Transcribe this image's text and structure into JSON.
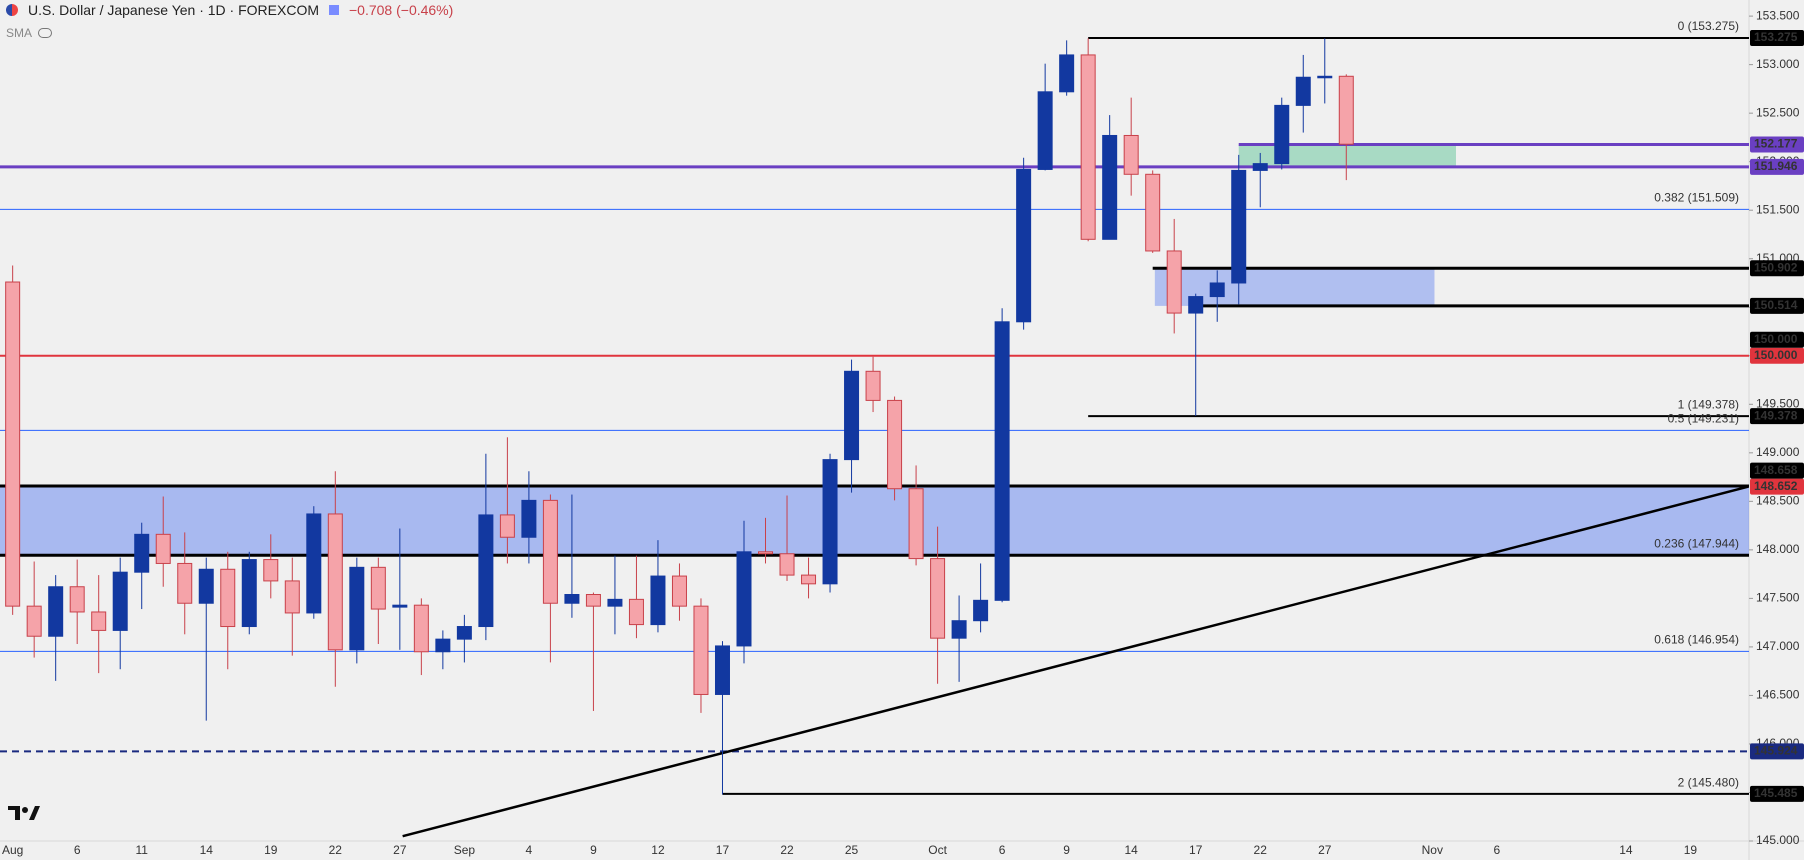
{
  "chart_data": {
    "type": "candlestick",
    "title": "U.S. Dollar / Japanese Yen · 1D · FOREXCOM",
    "change": "−0.708 (−0.46%)",
    "indicator": "SMA",
    "categories": [
      "Aug",
      null,
      null,
      "6",
      null,
      null,
      "11",
      null,
      null,
      "14",
      null,
      null,
      "19",
      null,
      null,
      "22",
      null,
      null,
      "27",
      null,
      null,
      "Sep",
      null,
      null,
      "4",
      null,
      null,
      "9",
      null,
      null,
      "12",
      null,
      null,
      "17",
      null,
      null,
      "22",
      null,
      null,
      "25",
      null,
      null,
      null,
      "Oct",
      null,
      null,
      "6",
      null,
      null,
      "9",
      null,
      null,
      "14",
      null,
      null,
      "17",
      null,
      null,
      "22",
      null,
      null,
      "27",
      null,
      null,
      null,
      null,
      "Nov",
      null,
      null,
      "6",
      null,
      null,
      null,
      null,
      null,
      "14",
      null,
      null,
      "19"
    ],
    "open": [
      150.76,
      147.42,
      147.11,
      147.62,
      147.36,
      147.17,
      147.77,
      148.16,
      147.86,
      147.45,
      147.8,
      147.21,
      147.9,
      147.68,
      147.35,
      148.37,
      146.97,
      147.82,
      147.41,
      147.43,
      146.95,
      147.08,
      147.21,
      148.36,
      148.13,
      148.51,
      147.45,
      147.54,
      147.42,
      147.49,
      147.23,
      147.73,
      147.42,
      146.51,
      147.01,
      147.98,
      147.96,
      147.74,
      147.65,
      148.93,
      149.84,
      149.54,
      148.63,
      147.91,
      147.09,
      147.27,
      147.48,
      150.35,
      151.92,
      152.72,
      153.1,
      151.2,
      152.27,
      151.87,
      151.08,
      150.44,
      150.61,
      150.75,
      151.91,
      151.98,
      152.58,
      152.87,
      152.88,
      null,
      null,
      null,
      null,
      null,
      null,
      null,
      null,
      null,
      null,
      null,
      null,
      null,
      null,
      null,
      null
    ],
    "high": [
      150.93,
      147.88,
      147.74,
      147.9,
      147.74,
      147.92,
      148.28,
      148.55,
      148.18,
      147.92,
      147.98,
      147.98,
      148.16,
      147.92,
      148.45,
      148.81,
      147.92,
      147.92,
      148.22,
      147.5,
      147.17,
      147.33,
      148.99,
      149.16,
      148.81,
      148.57,
      148.57,
      147.56,
      147.94,
      147.94,
      148.1,
      147.86,
      147.5,
      147.06,
      148.3,
      148.33,
      148.56,
      147.92,
      148.99,
      149.96,
      149.99,
      149.58,
      148.87,
      148.24,
      147.53,
      147.86,
      150.49,
      152.04,
      153.01,
      153.25,
      153.27,
      152.48,
      152.66,
      151.91,
      151.41,
      150.64,
      150.88,
      152.07,
      152.09,
      152.66,
      153.1,
      153.27,
      152.9,
      null,
      null,
      null,
      null,
      null,
      null,
      null,
      null,
      null,
      null,
      null,
      null,
      null,
      null,
      null,
      null
    ],
    "low": [
      147.33,
      146.89,
      146.65,
      147.03,
      146.73,
      146.77,
      147.39,
      147.62,
      147.13,
      146.24,
      146.77,
      147.13,
      147.5,
      146.91,
      147.29,
      146.59,
      146.83,
      147.03,
      146.97,
      146.71,
      146.77,
      146.84,
      147.07,
      147.86,
      147.86,
      146.84,
      147.3,
      146.34,
      147.13,
      147.09,
      147.15,
      147.27,
      146.32,
      145.48,
      146.83,
      147.86,
      147.68,
      147.5,
      147.56,
      148.59,
      149.42,
      148.51,
      147.84,
      146.62,
      146.64,
      147.15,
      147.46,
      150.27,
      151.91,
      152.68,
      151.18,
      151.2,
      151.65,
      151.06,
      150.23,
      149.38,
      150.35,
      150.53,
      151.53,
      151.92,
      152.3,
      152.6,
      151.81,
      null,
      null,
      null,
      null,
      null,
      null,
      null,
      null,
      null,
      null,
      null,
      null,
      null,
      null,
      null,
      null
    ],
    "close": [
      147.42,
      147.11,
      147.62,
      147.36,
      147.17,
      147.77,
      148.16,
      147.86,
      147.45,
      147.8,
      147.21,
      147.9,
      147.68,
      147.35,
      148.37,
      146.97,
      147.82,
      147.39,
      147.43,
      146.95,
      147.08,
      147.21,
      148.36,
      148.13,
      148.51,
      147.45,
      147.54,
      147.42,
      147.49,
      147.23,
      147.73,
      147.42,
      146.51,
      147.01,
      147.98,
      147.96,
      147.74,
      147.65,
      148.93,
      149.84,
      149.54,
      148.63,
      147.91,
      147.09,
      147.27,
      147.48,
      150.35,
      151.92,
      152.72,
      153.1,
      151.2,
      152.27,
      151.87,
      151.08,
      150.44,
      150.61,
      150.75,
      151.91,
      151.98,
      152.58,
      152.87,
      152.88,
      152.18,
      null,
      null,
      null,
      null,
      null,
      null,
      null,
      null,
      null,
      null,
      null,
      null,
      null,
      null,
      null,
      null
    ],
    "up_color": "#1238a0",
    "down_color": "#f5a3a9",
    "down_border": "#c8414a",
    "ylim": [
      145.0,
      153.666
    ],
    "yticks": [
      {
        "value": 145.0,
        "label": "145.000"
      },
      {
        "value": 145.5,
        "label": "145.500"
      },
      {
        "value": 146.0,
        "label": "146.000"
      },
      {
        "value": 146.5,
        "label": "146.500"
      },
      {
        "value": 147.0,
        "label": "147.000"
      },
      {
        "value": 147.5,
        "label": "147.500"
      },
      {
        "value": 148.0,
        "label": "148.000"
      },
      {
        "value": 148.5,
        "label": "148.500"
      },
      {
        "value": 149.0,
        "label": "149.000"
      },
      {
        "value": 149.5,
        "label": "149.500"
      },
      {
        "value": 150.0,
        "label": "150.000"
      },
      {
        "value": 150.5,
        "label": "150.500"
      },
      {
        "value": 151.0,
        "label": "151.000"
      },
      {
        "value": 151.5,
        "label": "151.500"
      },
      {
        "value": 152.0,
        "label": "152.000"
      },
      {
        "value": 152.5,
        "label": "152.500"
      },
      {
        "value": 153.0,
        "label": "153.000"
      },
      {
        "value": 153.5,
        "label": "153.500"
      }
    ],
    "zones": [
      {
        "low": 147.944,
        "high": 148.658,
        "color": "rgba(70,110,240,0.42)"
      },
      {
        "low": 150.514,
        "high": 150.902,
        "from": 53.1,
        "to": 66.1,
        "color": "rgba(70,110,240,0.38)"
      },
      {
        "low": 151.946,
        "high": 152.177,
        "from": 57,
        "to": 67.1,
        "color": "rgba(110,200,160,0.55)"
      }
    ],
    "levels": [
      {
        "value": 153.275,
        "label": "153.275",
        "color": "#000000",
        "width": 2,
        "from": 50
      },
      {
        "value": 152.177,
        "label": "152.177",
        "color": "#6a3fc2",
        "width": 3,
        "from": 57
      },
      {
        "value": 151.946,
        "label": "151.946",
        "color": "#6a3fc2",
        "width": 3
      },
      {
        "value": 151.509,
        "color": "#2962ff",
        "width": 1
      },
      {
        "value": 150.902,
        "label": "150.902",
        "color": "#000000",
        "width": 3,
        "from": 53
      },
      {
        "value": 150.514,
        "label": "150.514",
        "color": "#000000",
        "width": 3,
        "from": 55
      },
      {
        "value": 150.0,
        "label": "150.000",
        "color": "#e0343d",
        "width": 2
      },
      {
        "value": 149.378,
        "label": "149.378",
        "color": "#000000",
        "width": 2,
        "from": 50
      },
      {
        "value": 149.231,
        "color": "#2962ff",
        "width": 1
      },
      {
        "value": 148.658,
        "label": "148.658",
        "color": "#000000",
        "width": 3
      },
      {
        "value": 147.944,
        "color": "#000000",
        "width": 3
      },
      {
        "value": 146.954,
        "color": "#2962ff",
        "width": 1
      },
      {
        "value": 145.924,
        "label": "145.924",
        "color": "#1a2a80",
        "width": 2,
        "dash": true
      },
      {
        "value": 145.485,
        "label": "145.485",
        "color": "#000000",
        "width": 2,
        "from": 33
      }
    ],
    "markers": [
      {
        "value": 150.0,
        "label": "150.000",
        "color": "#000000"
      },
      {
        "value": 148.652,
        "label": "148.652",
        "color": "#e0343d"
      }
    ],
    "fib_labels": [
      {
        "value": 153.275,
        "label": "0 (153.275)",
        "color": "#333333"
      },
      {
        "value": 151.509,
        "label": "0.382 (151.509)",
        "color": "#2962ff"
      },
      {
        "value": 149.378,
        "label": "1 (149.378)",
        "color": "#333333"
      },
      {
        "value": 149.231,
        "label": "0.5 (149.231)",
        "color": "#2962ff"
      },
      {
        "value": 147.944,
        "label": "0.236 (147.944)",
        "color": "#333333"
      },
      {
        "value": 146.954,
        "label": "0.618 (146.954)",
        "color": "#2962ff"
      },
      {
        "value": 145.48,
        "label": "2 (145.480)",
        "color": "#333333"
      }
    ],
    "trendline": {
      "x": [
        18.13,
        80.7
      ],
      "y": [
        145.05,
        148.652
      ],
      "color": "#000000"
    }
  }
}
